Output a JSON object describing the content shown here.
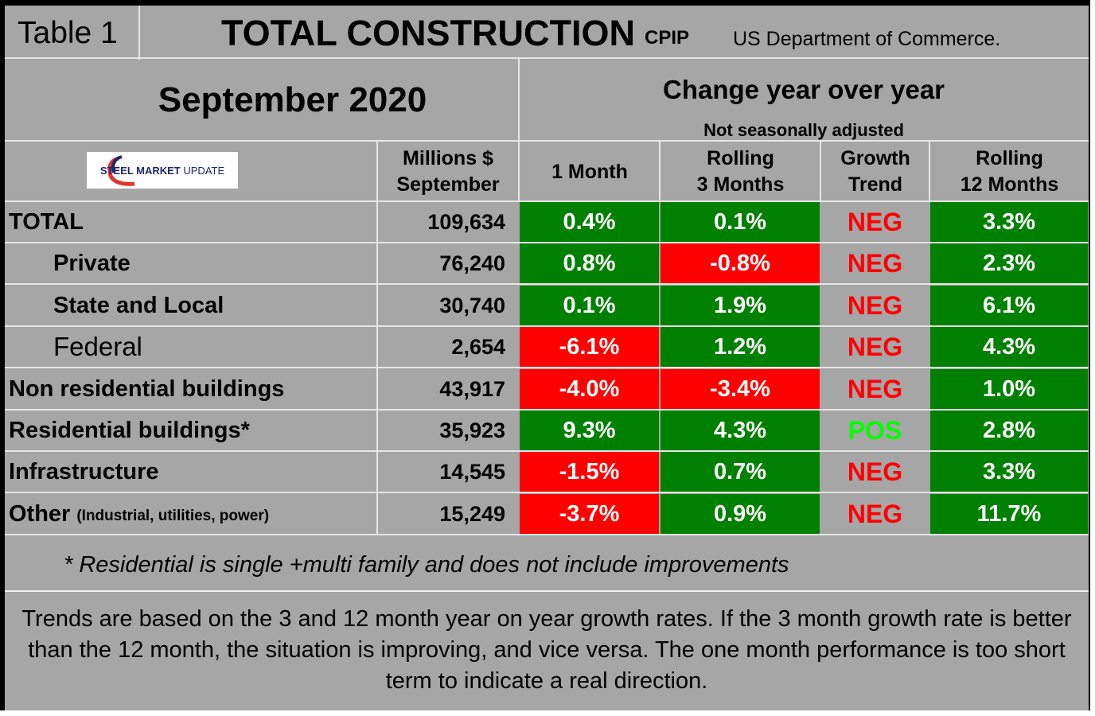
{
  "header": {
    "table_label": "Table 1",
    "title": "TOTAL CONSTRUCTION",
    "title_suffix": "CPIP",
    "source": "US Department of Commerce.",
    "period": "September 2020",
    "change_heading": "Change year over year",
    "adjustment_note": "Not seasonally adjusted"
  },
  "logo": {
    "text_bold": "STEEL MARKET",
    "text_light": "UPDATE",
    "colors": {
      "dark": "#1b2a6b",
      "accent": "#e3342f"
    }
  },
  "columns": {
    "millions": {
      "line1": "Millions $",
      "line2": "September"
    },
    "one_month": "1 Month",
    "rolling3": {
      "line1": "Rolling",
      "line2": "3 Months"
    },
    "growth": {
      "line1": "Growth",
      "line2": "Trend"
    },
    "rolling12": {
      "line1": "Rolling",
      "line2": "12 Months"
    }
  },
  "rows": [
    {
      "label": "TOTAL",
      "sub": "",
      "value": "109,634",
      "m1": "0.4%",
      "m1_color": "green",
      "m3": "0.1%",
      "m3_color": "green",
      "trend": "NEG",
      "m12": "3.3%"
    },
    {
      "label": "Private",
      "sub": "",
      "value": "76,240",
      "m1": "0.8%",
      "m1_color": "green",
      "m3": "-0.8%",
      "m3_color": "red",
      "trend": "NEG",
      "m12": "2.3%"
    },
    {
      "label": "State and Local",
      "sub": "",
      "value": "30,740",
      "m1": "0.1%",
      "m1_color": "green",
      "m3": "1.9%",
      "m3_color": "green",
      "trend": "NEG",
      "m12": "6.1%"
    },
    {
      "label": "Federal",
      "sub": "",
      "value": "2,654",
      "m1": "-6.1%",
      "m1_color": "red",
      "m3": "1.2%",
      "m3_color": "green",
      "trend": "NEG",
      "m12": "4.3%"
    },
    {
      "label": "Non residential buildings",
      "sub": "",
      "value": "43,917",
      "m1": "-4.0%",
      "m1_color": "red",
      "m3": "-3.4%",
      "m3_color": "red",
      "trend": "NEG",
      "m12": "1.0%"
    },
    {
      "label": "Residential buildings*",
      "sub": "",
      "value": "35,923",
      "m1": "9.3%",
      "m1_color": "green",
      "m3": "4.3%",
      "m3_color": "green",
      "trend": "POS",
      "m12": "2.8%"
    },
    {
      "label": "Infrastructure",
      "sub": "",
      "value": "14,545",
      "m1": "-1.5%",
      "m1_color": "red",
      "m3": "0.7%",
      "m3_color": "green",
      "trend": "NEG",
      "m12": "3.3%"
    },
    {
      "label": "Other",
      "sub": "(Industrial, utilities, power)",
      "value": "15,249",
      "m1": "-3.7%",
      "m1_color": "red",
      "m3": "0.9%",
      "m3_color": "green",
      "trend": "NEG",
      "m12": "11.7%"
    }
  ],
  "footnote": "* Residential is single +multi family and does not include improvements",
  "explanation": "Trends are based on the 3 and 12 month year on year growth rates. If the 3 month growth rate is better than the 12 month, the situation is improving, and vice versa. The one month performance is too short term to indicate a real direction."
}
